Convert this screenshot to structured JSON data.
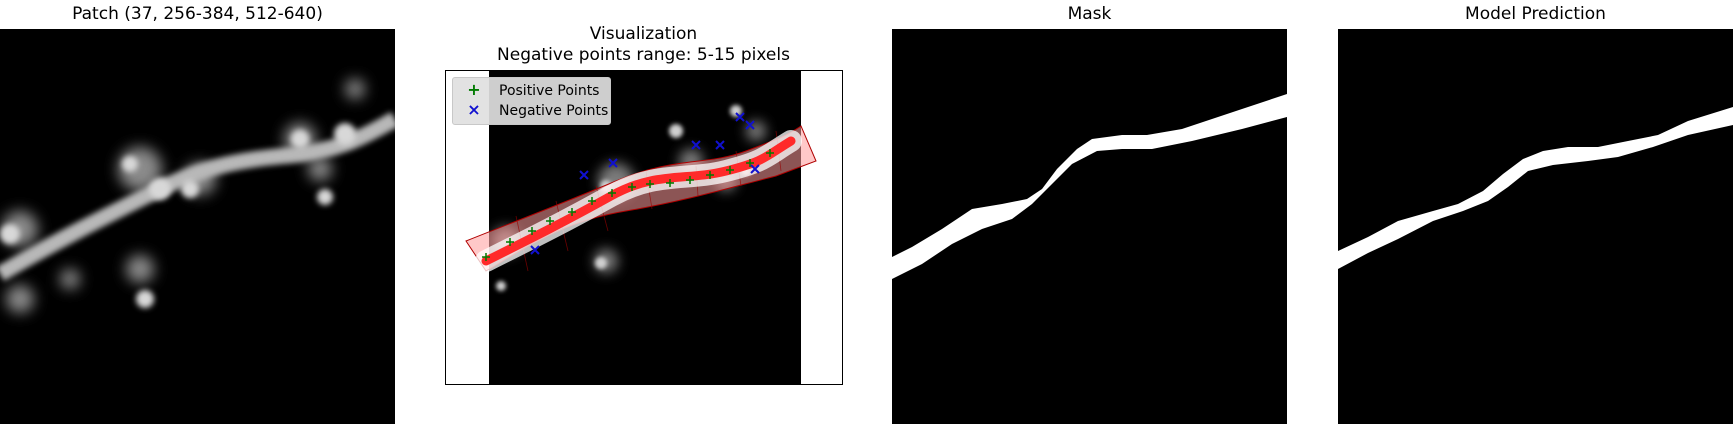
{
  "panels": {
    "patch": {
      "title": "Patch (37, 256-384, 512-640)"
    },
    "visualization": {
      "title_line1": "Visualization",
      "title_line2": "Negative points range: 5-15 pixels"
    },
    "mask": {
      "title": "Mask"
    },
    "prediction": {
      "title": "Model Prediction"
    }
  },
  "legend": {
    "items": [
      {
        "symbol": "+",
        "label": "Positive Points",
        "color": "#007a00"
      },
      {
        "symbol": "×",
        "label": "Negative Points",
        "color": "#1010d0"
      }
    ]
  },
  "colors": {
    "positive": "#007a00",
    "negative": "#1010d0",
    "path": "#ff2a2a",
    "band": "#ff9a9a",
    "background": "#000000",
    "structure": "#ffffff"
  }
}
